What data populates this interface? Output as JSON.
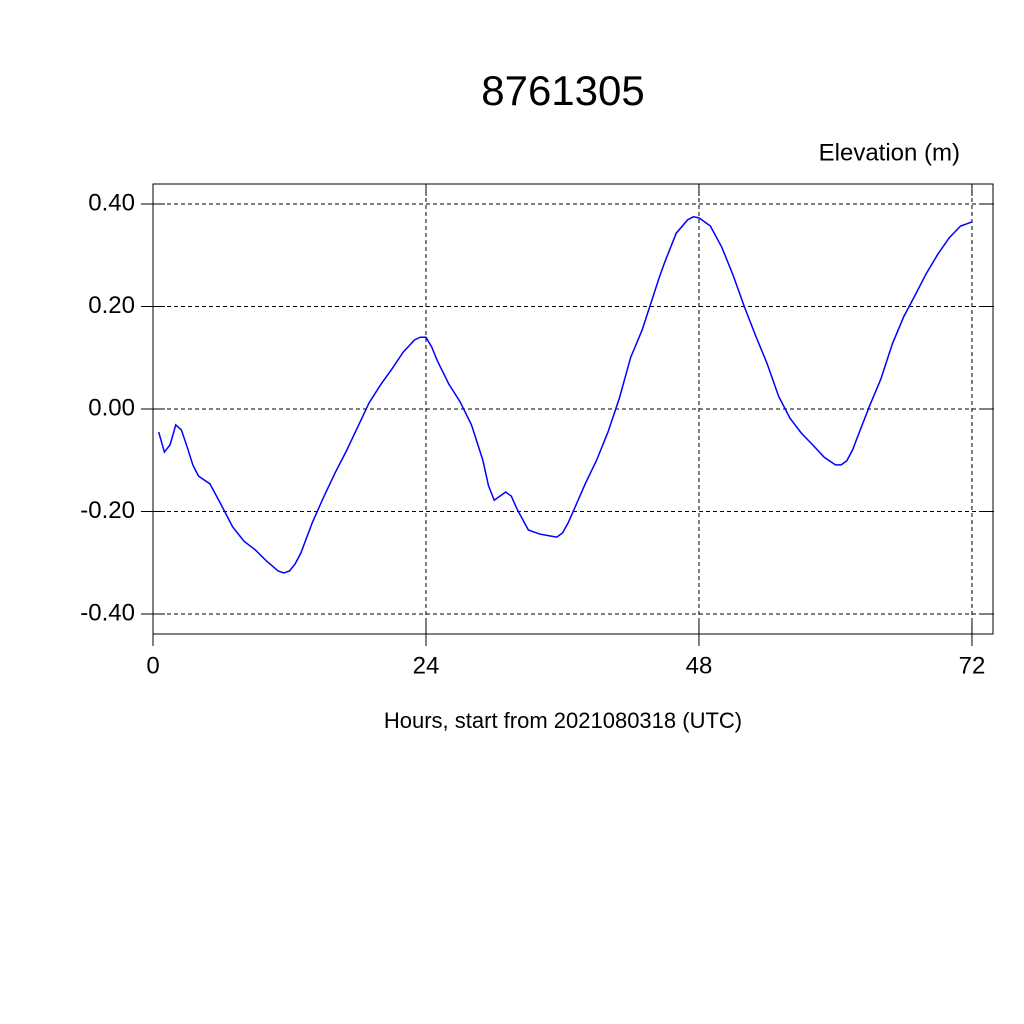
{
  "chart_data": {
    "type": "line",
    "title": "8761305",
    "y_label": "Elevation (m)",
    "x_label": "Hours, start from 2021080318 (UTC)",
    "xlim": [
      0,
      73.85
    ],
    "ylim": [
      -0.439,
      0.439
    ],
    "xticks": [
      0,
      24,
      48,
      72
    ],
    "yticks": [
      {
        "value": -0.4,
        "label": "-0.40"
      },
      {
        "value": -0.2,
        "label": "-0.20"
      },
      {
        "value": 0,
        "label": "0.00"
      },
      {
        "value": 0.2,
        "label": "0.20"
      },
      {
        "value": 0.4,
        "label": "0.40"
      }
    ],
    "grid": true,
    "x": [
      0.5,
      1,
      1.5,
      2,
      2.5,
      3,
      3.5,
      4,
      5,
      6,
      7,
      8,
      9,
      10,
      11,
      11.5,
      12,
      12.5,
      13,
      14,
      15,
      16,
      17,
      18,
      19,
      20,
      21,
      22,
      23,
      23.5,
      24,
      24.5,
      25,
      26,
      27,
      28,
      29,
      29.5,
      30,
      31,
      31.5,
      32,
      33,
      34,
      35,
      35.5,
      36,
      36.5,
      37,
      38,
      39,
      40,
      41,
      42,
      43,
      44,
      44.5,
      45,
      46,
      47,
      47.5,
      48,
      49,
      50,
      51,
      52,
      53,
      54,
      55,
      56,
      57,
      58,
      59,
      60,
      60.5,
      61,
      61.5,
      62,
      63,
      64,
      65,
      66,
      67,
      68,
      69,
      70,
      71,
      72
    ],
    "series": [
      {
        "name": "Elevation",
        "color": "#0000ff",
        "values": [
          -0.045,
          -0.084,
          -0.07,
          -0.031,
          -0.041,
          -0.074,
          -0.109,
          -0.131,
          -0.146,
          -0.187,
          -0.23,
          -0.258,
          -0.275,
          -0.297,
          -0.316,
          -0.32,
          -0.316,
          -0.302,
          -0.281,
          -0.222,
          -0.172,
          -0.125,
          -0.082,
          -0.035,
          0.012,
          0.047,
          0.078,
          0.111,
          0.135,
          0.14,
          0.14,
          0.121,
          0.094,
          0.049,
          0.014,
          -0.031,
          -0.1,
          -0.15,
          -0.178,
          -0.162,
          -0.17,
          -0.195,
          -0.236,
          -0.244,
          -0.248,
          -0.25,
          -0.242,
          -0.222,
          -0.197,
          -0.146,
          -0.1,
          -0.045,
          0.021,
          0.101,
          0.154,
          0.222,
          0.256,
          0.287,
          0.343,
          0.369,
          0.375,
          0.373,
          0.357,
          0.316,
          0.261,
          0.199,
          0.142,
          0.088,
          0.025,
          -0.018,
          -0.047,
          -0.07,
          -0.094,
          -0.109,
          -0.109,
          -0.101,
          -0.08,
          -0.051,
          0.006,
          0.059,
          0.127,
          0.18,
          0.222,
          0.265,
          0.302,
          0.334,
          0.357,
          0.365
        ]
      }
    ]
  }
}
